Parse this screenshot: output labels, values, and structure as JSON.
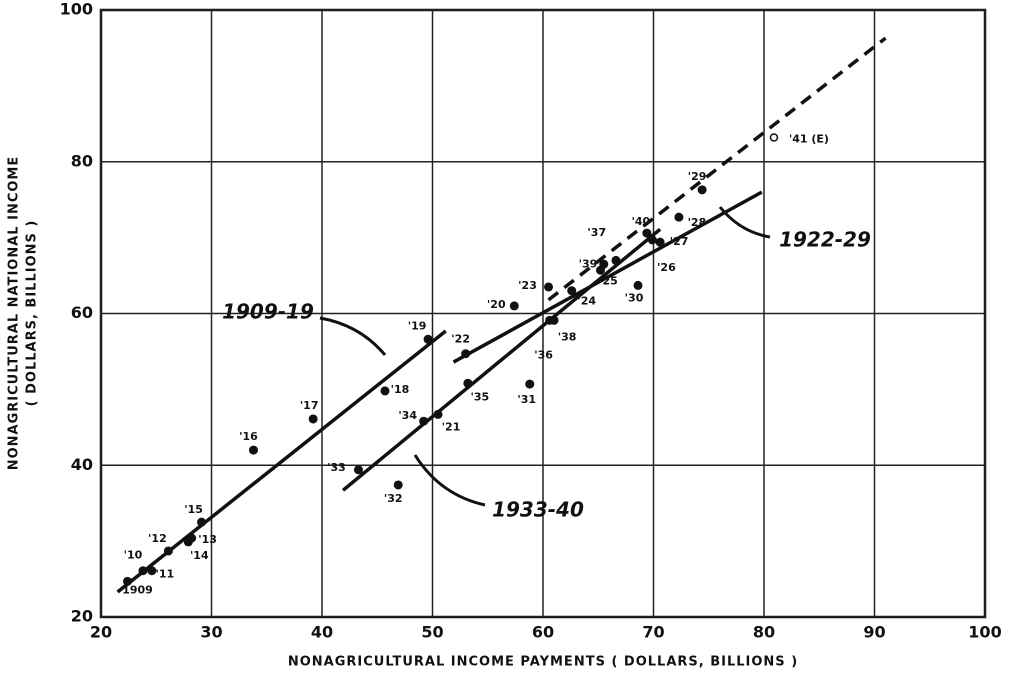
{
  "chart_data": {
    "type": "scatter",
    "xlabel": "NONAGRICULTURAL INCOME PAYMENTS ( DOLLARS, BILLIONS )",
    "ylabel": [
      "NONAGRICULTURAL NATIONAL INCOME",
      "( DOLLARS, BILLIONS )"
    ],
    "xlim": [
      20,
      100
    ],
    "ylim": [
      20,
      100
    ],
    "xticks": [
      20,
      30,
      40,
      50,
      60,
      70,
      80,
      90,
      100
    ],
    "yticks": [
      20,
      40,
      60,
      80,
      100
    ],
    "grid": true,
    "color": "#111",
    "points": {
      "labels": [
        "1909",
        "'10",
        "'11",
        "'12",
        "'13",
        "'14",
        "'15",
        "'16",
        "'17",
        "'18",
        "'19",
        "'20",
        "'21",
        "'22",
        "'23",
        "'24",
        "'25",
        "'26",
        "'27",
        "'28",
        "'29",
        "'30",
        "'31",
        "'32",
        "'33",
        "'34",
        "'35",
        "'36",
        "'37",
        "'38",
        "'39",
        "'40",
        "'41 (E)"
      ],
      "x": [
        22.4,
        23.8,
        24.6,
        26.1,
        28.2,
        27.9,
        29.1,
        33.8,
        39.2,
        45.7,
        49.6,
        57.4,
        50.5,
        53.0,
        60.5,
        62.6,
        65.2,
        69.9,
        70.6,
        72.3,
        74.4,
        68.6,
        58.8,
        46.9,
        43.3,
        49.2,
        53.2,
        60.6,
        65.5,
        61.0,
        66.6,
        69.4,
        80.9
      ],
      "y": [
        24.7,
        26.1,
        26.1,
        28.7,
        30.4,
        29.9,
        32.5,
        42.0,
        46.1,
        49.8,
        56.6,
        61.0,
        46.7,
        54.7,
        63.5,
        63.0,
        65.7,
        69.7,
        69.4,
        72.7,
        76.3,
        63.7,
        50.7,
        37.4,
        39.4,
        45.8,
        50.8,
        59.1,
        66.5,
        59.1,
        67.0,
        70.6,
        83.2
      ],
      "hollow_index": 32
    },
    "fit_lines": [
      {
        "name": "1909-19",
        "x": [
          21.5,
          51.2
        ],
        "y": [
          23.3,
          57.7
        ],
        "dashed": false
      },
      {
        "name": "1922-29",
        "x": [
          51.9,
          79.8
        ],
        "y": [
          53.6,
          76.0
        ],
        "dashed": false
      },
      {
        "name": "1933-40",
        "x": [
          41.9,
          70.6
        ],
        "y": [
          36.7,
          71.1
        ],
        "dashed": false
      },
      {
        "x": [
          60.5,
          91.0
        ],
        "y": [
          61.8,
          96.3
        ],
        "dashed": true
      }
    ]
  }
}
